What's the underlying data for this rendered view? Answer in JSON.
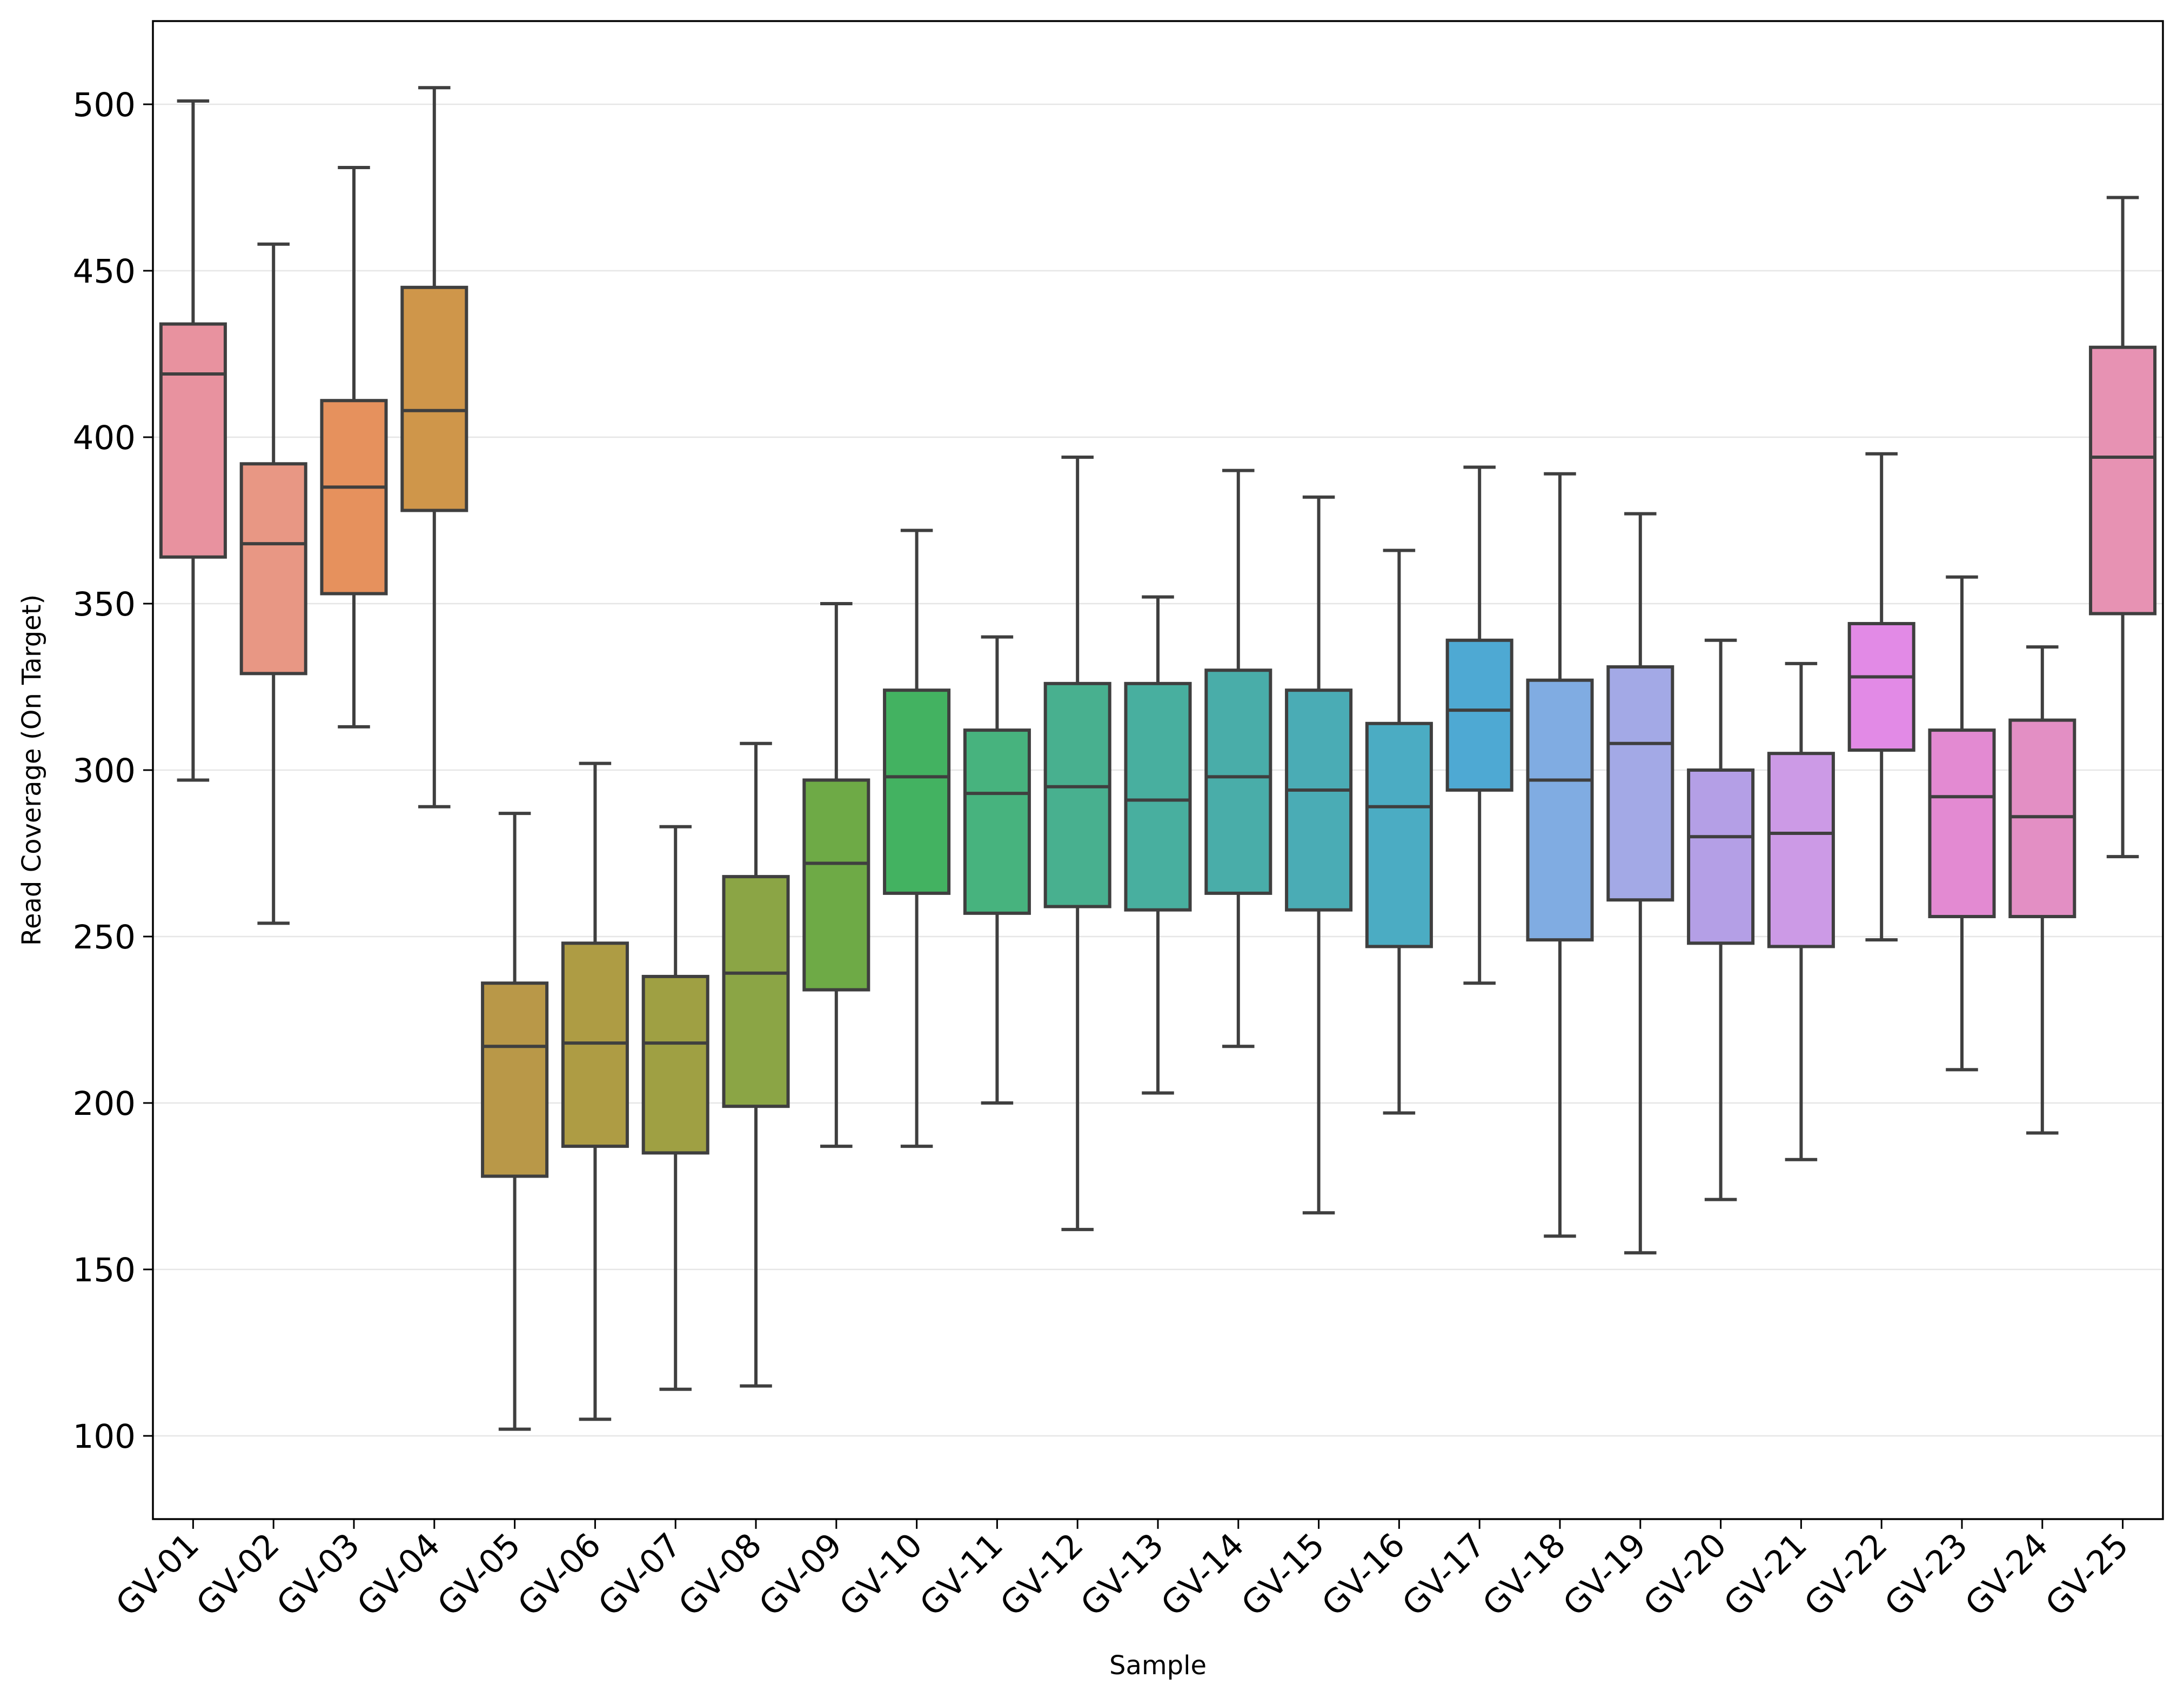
{
  "chart_data": {
    "type": "box",
    "title": "",
    "xlabel": "Sample",
    "ylabel": "Read Coverage (On Target)",
    "ylim": [
      75,
      525
    ],
    "yticks": [
      100,
      150,
      200,
      250,
      300,
      350,
      400,
      450,
      500
    ],
    "grid": "horizontal",
    "legend": "none",
    "box_edge_color": "#3f3f3f",
    "grid_color": "#e6e6e6",
    "categories": [
      "GV-01",
      "GV-02",
      "GV-03",
      "GV-04",
      "GV-05",
      "GV-06",
      "GV-07",
      "GV-08",
      "GV-09",
      "GV-10",
      "GV-11",
      "GV-12",
      "GV-13",
      "GV-14",
      "GV-15",
      "GV-16",
      "GV-17",
      "GV-18",
      "GV-19",
      "GV-20",
      "GV-21",
      "GV-22",
      "GV-23",
      "GV-24",
      "GV-25"
    ],
    "boxes": [
      {
        "whisker_low": 297,
        "q1": 364,
        "median": 419,
        "q3": 434,
        "whisker_high": 501,
        "color": "#e8929f"
      },
      {
        "whisker_low": 254,
        "q1": 329,
        "median": 368,
        "q3": 392,
        "whisker_high": 458,
        "color": "#e89784"
      },
      {
        "whisker_low": 313,
        "q1": 353,
        "median": 385,
        "q3": 411,
        "whisker_high": 481,
        "color": "#e6915d"
      },
      {
        "whisker_low": 289,
        "q1": 378,
        "median": 408,
        "q3": 445,
        "whisker_high": 505,
        "color": "#cf964a"
      },
      {
        "whisker_low": 102,
        "q1": 178,
        "median": 217,
        "q3": 236,
        "whisker_high": 287,
        "color": "#b99848"
      },
      {
        "whisker_low": 105,
        "q1": 187,
        "median": 218,
        "q3": 248,
        "whisker_high": 302,
        "color": "#ae9c44"
      },
      {
        "whisker_low": 114,
        "q1": 185,
        "median": 218,
        "q3": 238,
        "whisker_high": 283,
        "color": "#9fa043"
      },
      {
        "whisker_low": 115,
        "q1": 199,
        "median": 239,
        "q3": 268,
        "whisker_high": 308,
        "color": "#8ba545"
      },
      {
        "whisker_low": 187,
        "q1": 234,
        "median": 272,
        "q3": 297,
        "whisker_high": 350,
        "color": "#6eaa46"
      },
      {
        "whisker_low": 187,
        "q1": 263,
        "median": 298,
        "q3": 324,
        "whisker_high": 372,
        "color": "#43b261"
      },
      {
        "whisker_low": 200,
        "q1": 257,
        "median": 293,
        "q3": 312,
        "whisker_high": 340,
        "color": "#47b37e"
      },
      {
        "whisker_low": 162,
        "q1": 259,
        "median": 295,
        "q3": 326,
        "whisker_high": 394,
        "color": "#48b08f"
      },
      {
        "whisker_low": 203,
        "q1": 258,
        "median": 291,
        "q3": 326,
        "whisker_high": 352,
        "color": "#48af9f"
      },
      {
        "whisker_low": 217,
        "q1": 263,
        "median": 298,
        "q3": 330,
        "whisker_high": 390,
        "color": "#49ada9"
      },
      {
        "whisker_low": 167,
        "q1": 258,
        "median": 294,
        "q3": 324,
        "whisker_high": 382,
        "color": "#4aacb5"
      },
      {
        "whisker_low": 197,
        "q1": 247,
        "median": 289,
        "q3": 314,
        "whisker_high": 366,
        "color": "#4bacc3"
      },
      {
        "whisker_low": 236,
        "q1": 294,
        "median": 318,
        "q3": 339,
        "whisker_high": 391,
        "color": "#4ea9d3"
      },
      {
        "whisker_low": 160,
        "q1": 249,
        "median": 297,
        "q3": 327,
        "whisker_high": 389,
        "color": "#80ace2"
      },
      {
        "whisker_low": 155,
        "q1": 261,
        "median": 308,
        "q3": 331,
        "whisker_high": 377,
        "color": "#a3a9e6"
      },
      {
        "whisker_low": 171,
        "q1": 248,
        "median": 280,
        "q3": 300,
        "whisker_high": 339,
        "color": "#b49fe6"
      },
      {
        "whisker_low": 183,
        "q1": 247,
        "median": 281,
        "q3": 305,
        "whisker_high": 332,
        "color": "#cc9ae6"
      },
      {
        "whisker_low": 249,
        "q1": 306,
        "median": 328,
        "q3": 344,
        "whisker_high": 395,
        "color": "#e28ae6"
      },
      {
        "whisker_low": 210,
        "q1": 256,
        "median": 292,
        "q3": 312,
        "whisker_high": 358,
        "color": "#e38ad2"
      },
      {
        "whisker_low": 191,
        "q1": 256,
        "median": 286,
        "q3": 315,
        "whisker_high": 337,
        "color": "#e38fc4"
      },
      {
        "whisker_low": 274,
        "q1": 347,
        "median": 394,
        "q3": 427,
        "whisker_high": 472,
        "color": "#e792b3"
      }
    ]
  }
}
